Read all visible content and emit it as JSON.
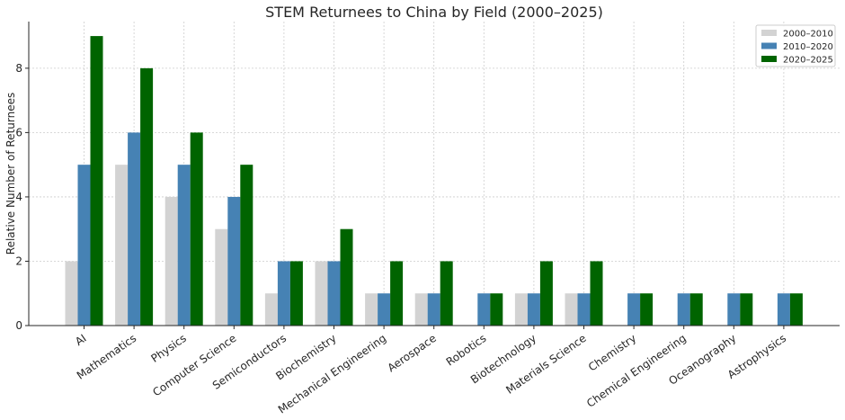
{
  "chart_data": {
    "type": "bar",
    "title": "STEM Returnees to China by Field (2000–2025)",
    "xlabel": "",
    "ylabel": "Relative Number of Returnees",
    "ylim": [
      0,
      9.45
    ],
    "yticks": [
      0,
      2,
      4,
      6,
      8
    ],
    "grid": true,
    "legend_position": "top-right",
    "categories": [
      "AI",
      "Mathematics",
      "Physics",
      "Computer Science",
      "Semiconductors",
      "Biochemistry",
      "Mechanical Engineering",
      "Aerospace",
      "Robotics",
      "Biotechnology",
      "Materials Science",
      "Chemistry",
      "Chemical Engineering",
      "Oceanography",
      "Astrophysics"
    ],
    "series": [
      {
        "name": "2000–2010",
        "color": "#d3d3d3",
        "values": [
          2,
          5,
          4,
          3,
          1,
          2,
          1,
          1,
          0,
          1,
          1,
          0,
          0,
          0,
          0
        ]
      },
      {
        "name": "2010–2020",
        "color": "#4682b4",
        "values": [
          5,
          6,
          5,
          4,
          2,
          2,
          1,
          1,
          1,
          1,
          1,
          1,
          1,
          1,
          1
        ]
      },
      {
        "name": "2020–2025",
        "color": "#006400",
        "values": [
          9,
          8,
          6,
          5,
          2,
          3,
          2,
          2,
          1,
          2,
          2,
          1,
          1,
          1,
          1
        ]
      }
    ]
  }
}
